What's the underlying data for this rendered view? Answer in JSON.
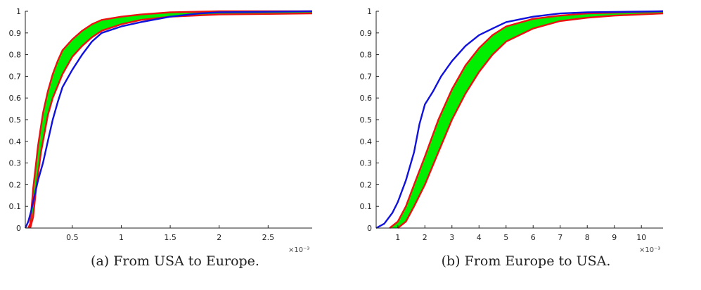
{
  "chart_data": [
    {
      "type": "line",
      "caption": "(a) From USA to Europe.",
      "x_exponent_label": "×10⁻³",
      "xlim": [
        0.02,
        2.95
      ],
      "ylim": [
        0,
        1
      ],
      "x_ticks": [
        0.5,
        1,
        1.5,
        2,
        2.5
      ],
      "x_tick_labels": [
        "0.5",
        "1",
        "1.5",
        "2",
        "2.5"
      ],
      "y_ticks": [
        0,
        0.1,
        0.2,
        0.3,
        0.4,
        0.5,
        0.6,
        0.7,
        0.8,
        0.9,
        1
      ],
      "y_tick_labels": [
        "0",
        "0.1",
        "0.2",
        "0.3",
        "0.4",
        "0.5",
        "0.6",
        "0.7",
        "0.8",
        "0.9",
        "1"
      ],
      "grid": false,
      "band": {
        "color": "#00ee00",
        "upper": [
          [
            0.05,
            0
          ],
          [
            0.07,
            0.02
          ],
          [
            0.1,
            0.18
          ],
          [
            0.15,
            0.38
          ],
          [
            0.2,
            0.53
          ],
          [
            0.25,
            0.63
          ],
          [
            0.3,
            0.71
          ],
          [
            0.35,
            0.77
          ],
          [
            0.4,
            0.82
          ],
          [
            0.5,
            0.87
          ],
          [
            0.6,
            0.91
          ],
          [
            0.7,
            0.94
          ],
          [
            0.8,
            0.96
          ],
          [
            1.0,
            0.975
          ],
          [
            1.2,
            0.985
          ],
          [
            1.5,
            0.995
          ],
          [
            2.0,
            1.0
          ],
          [
            2.95,
            1.0
          ]
        ],
        "lower": [
          [
            0.07,
            0
          ],
          [
            0.1,
            0.05
          ],
          [
            0.13,
            0.18
          ],
          [
            0.18,
            0.35
          ],
          [
            0.25,
            0.52
          ],
          [
            0.3,
            0.6
          ],
          [
            0.4,
            0.71
          ],
          [
            0.5,
            0.79
          ],
          [
            0.6,
            0.84
          ],
          [
            0.7,
            0.88
          ],
          [
            0.8,
            0.91
          ],
          [
            1.0,
            0.94
          ],
          [
            1.2,
            0.96
          ],
          [
            1.5,
            0.975
          ],
          [
            2.0,
            0.985
          ],
          [
            2.95,
            0.99
          ]
        ]
      },
      "series": [
        {
          "color": "#ee1111",
          "values": [
            [
              0.05,
              0
            ],
            [
              0.07,
              0.02
            ],
            [
              0.1,
              0.18
            ],
            [
              0.15,
              0.38
            ],
            [
              0.2,
              0.53
            ],
            [
              0.25,
              0.63
            ],
            [
              0.3,
              0.71
            ],
            [
              0.35,
              0.77
            ],
            [
              0.4,
              0.82
            ],
            [
              0.5,
              0.87
            ],
            [
              0.6,
              0.91
            ],
            [
              0.7,
              0.94
            ],
            [
              0.8,
              0.96
            ],
            [
              1.0,
              0.975
            ],
            [
              1.2,
              0.985
            ],
            [
              1.5,
              0.995
            ],
            [
              2.0,
              1.0
            ],
            [
              2.95,
              1.0
            ]
          ]
        },
        {
          "color": "#ee1111",
          "values": [
            [
              0.07,
              0
            ],
            [
              0.1,
              0.05
            ],
            [
              0.13,
              0.18
            ],
            [
              0.18,
              0.35
            ],
            [
              0.25,
              0.52
            ],
            [
              0.3,
              0.6
            ],
            [
              0.4,
              0.71
            ],
            [
              0.5,
              0.79
            ],
            [
              0.6,
              0.84
            ],
            [
              0.7,
              0.88
            ],
            [
              0.8,
              0.91
            ],
            [
              1.0,
              0.94
            ],
            [
              1.2,
              0.96
            ],
            [
              1.5,
              0.975
            ],
            [
              2.0,
              0.985
            ],
            [
              2.95,
              0.99
            ]
          ]
        },
        {
          "color": "#1111dd",
          "values": [
            [
              0.02,
              0
            ],
            [
              0.05,
              0.03
            ],
            [
              0.08,
              0.08
            ],
            [
              0.1,
              0.12
            ],
            [
              0.15,
              0.22
            ],
            [
              0.2,
              0.3
            ],
            [
              0.25,
              0.4
            ],
            [
              0.3,
              0.5
            ],
            [
              0.35,
              0.58
            ],
            [
              0.4,
              0.65
            ],
            [
              0.5,
              0.73
            ],
            [
              0.6,
              0.8
            ],
            [
              0.7,
              0.86
            ],
            [
              0.8,
              0.9
            ],
            [
              1.0,
              0.93
            ],
            [
              1.2,
              0.95
            ],
            [
              1.5,
              0.975
            ],
            [
              1.8,
              0.99
            ],
            [
              2.0,
              0.995
            ],
            [
              2.95,
              1.0
            ]
          ]
        }
      ]
    },
    {
      "type": "line",
      "caption": "(b) From Europe to USA.",
      "x_exponent_label": "×10⁻³",
      "xlim": [
        0.2,
        10.8
      ],
      "ylim": [
        0,
        1
      ],
      "x_ticks": [
        1,
        2,
        3,
        4,
        5,
        6,
        7,
        8,
        9,
        10
      ],
      "x_tick_labels": [
        "1",
        "2",
        "3",
        "4",
        "5",
        "6",
        "7",
        "8",
        "9",
        "10"
      ],
      "y_ticks": [
        0,
        0.1,
        0.2,
        0.3,
        0.4,
        0.5,
        0.6,
        0.7,
        0.8,
        0.9,
        1
      ],
      "y_tick_labels": [
        "0",
        "0.1",
        "0.2",
        "0.3",
        "0.4",
        "0.5",
        "0.6",
        "0.7",
        "0.8",
        "0.9",
        "1"
      ],
      "grid": false,
      "band": {
        "color": "#00ee00",
        "upper": [
          [
            0.7,
            0
          ],
          [
            1.0,
            0.03
          ],
          [
            1.3,
            0.1
          ],
          [
            1.6,
            0.2
          ],
          [
            2.0,
            0.33
          ],
          [
            2.5,
            0.5
          ],
          [
            3.0,
            0.64
          ],
          [
            3.5,
            0.75
          ],
          [
            4.0,
            0.83
          ],
          [
            4.5,
            0.89
          ],
          [
            5.0,
            0.93
          ],
          [
            6.0,
            0.965
          ],
          [
            7.0,
            0.98
          ],
          [
            8.0,
            0.99
          ],
          [
            10.8,
            1.0
          ]
        ],
        "lower": [
          [
            1.0,
            0
          ],
          [
            1.3,
            0.03
          ],
          [
            1.6,
            0.1
          ],
          [
            2.0,
            0.2
          ],
          [
            2.5,
            0.35
          ],
          [
            3.0,
            0.5
          ],
          [
            3.5,
            0.62
          ],
          [
            4.0,
            0.72
          ],
          [
            4.5,
            0.8
          ],
          [
            5.0,
            0.86
          ],
          [
            6.0,
            0.92
          ],
          [
            7.0,
            0.955
          ],
          [
            8.0,
            0.97
          ],
          [
            9.0,
            0.98
          ],
          [
            10.8,
            0.99
          ]
        ]
      },
      "series": [
        {
          "color": "#ee1111",
          "values": [
            [
              0.7,
              0
            ],
            [
              1.0,
              0.03
            ],
            [
              1.3,
              0.1
            ],
            [
              1.6,
              0.2
            ],
            [
              2.0,
              0.33
            ],
            [
              2.5,
              0.5
            ],
            [
              3.0,
              0.64
            ],
            [
              3.5,
              0.75
            ],
            [
              4.0,
              0.83
            ],
            [
              4.5,
              0.89
            ],
            [
              5.0,
              0.93
            ],
            [
              6.0,
              0.965
            ],
            [
              7.0,
              0.98
            ],
            [
              8.0,
              0.99
            ],
            [
              10.8,
              1.0
            ]
          ]
        },
        {
          "color": "#ee1111",
          "values": [
            [
              1.0,
              0
            ],
            [
              1.3,
              0.03
            ],
            [
              1.6,
              0.1
            ],
            [
              2.0,
              0.2
            ],
            [
              2.5,
              0.35
            ],
            [
              3.0,
              0.5
            ],
            [
              3.5,
              0.62
            ],
            [
              4.0,
              0.72
            ],
            [
              4.5,
              0.8
            ],
            [
              5.0,
              0.86
            ],
            [
              6.0,
              0.92
            ],
            [
              7.0,
              0.955
            ],
            [
              8.0,
              0.97
            ],
            [
              9.0,
              0.98
            ],
            [
              10.8,
              0.99
            ]
          ]
        },
        {
          "color": "#1111dd",
          "values": [
            [
              0.2,
              0
            ],
            [
              0.5,
              0.02
            ],
            [
              0.8,
              0.07
            ],
            [
              1.0,
              0.12
            ],
            [
              1.3,
              0.22
            ],
            [
              1.6,
              0.35
            ],
            [
              1.8,
              0.48
            ],
            [
              2.0,
              0.57
            ],
            [
              2.3,
              0.63
            ],
            [
              2.6,
              0.7
            ],
            [
              3.0,
              0.77
            ],
            [
              3.5,
              0.84
            ],
            [
              4.0,
              0.89
            ],
            [
              4.5,
              0.92
            ],
            [
              5.0,
              0.95
            ],
            [
              6.0,
              0.975
            ],
            [
              7.0,
              0.99
            ],
            [
              8.0,
              0.995
            ],
            [
              10.8,
              1.0
            ]
          ]
        }
      ]
    }
  ]
}
